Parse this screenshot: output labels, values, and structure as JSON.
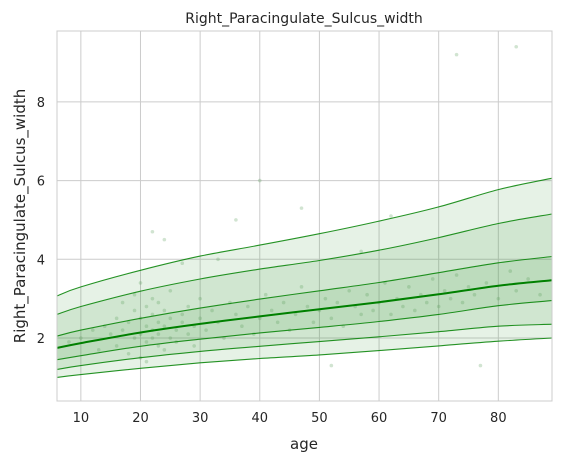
{
  "chart_data": {
    "type": "line",
    "title": "Right_Paracingulate_Sulcus_width",
    "xlabel": "age",
    "ylabel": "Right_Paracingulate_Sulcus_width",
    "xlim": [
      6,
      89
    ],
    "ylim": [
      0.4,
      9.8
    ],
    "xticks": [
      10,
      20,
      30,
      40,
      50,
      60,
      70,
      80
    ],
    "yticks": [
      2,
      4,
      6,
      8
    ],
    "grid": true,
    "line_color": "#008000",
    "band_color": "#3a9e3a",
    "x": [
      6,
      10,
      20,
      30,
      40,
      50,
      60,
      70,
      80,
      89
    ],
    "series": [
      {
        "values": [
          1.0,
          1.07,
          1.23,
          1.37,
          1.48,
          1.57,
          1.68,
          1.8,
          1.92,
          2.0
        ]
      },
      {
        "values": [
          1.2,
          1.3,
          1.5,
          1.66,
          1.79,
          1.91,
          2.03,
          2.16,
          2.3,
          2.35
        ]
      },
      {
        "values": [
          1.45,
          1.55,
          1.79,
          1.97,
          2.13,
          2.27,
          2.42,
          2.6,
          2.82,
          2.95
        ]
      },
      {
        "values": [
          1.75,
          1.87,
          2.14,
          2.36,
          2.55,
          2.73,
          2.91,
          3.11,
          3.33,
          3.47
        ]
      },
      {
        "values": [
          2.05,
          2.2,
          2.5,
          2.76,
          2.99,
          3.2,
          3.41,
          3.66,
          3.91,
          4.07
        ]
      },
      {
        "values": [
          2.6,
          2.8,
          3.19,
          3.5,
          3.75,
          3.97,
          4.23,
          4.55,
          4.91,
          5.15
        ]
      },
      {
        "values": [
          3.07,
          3.3,
          3.72,
          4.08,
          4.36,
          4.65,
          4.97,
          5.33,
          5.77,
          6.06
        ]
      }
    ],
    "scatter": {
      "x": [
        8,
        10,
        12,
        13,
        14,
        15,
        16,
        16,
        17,
        17,
        18,
        18,
        19,
        19,
        19,
        20,
        20,
        20,
        20,
        21,
        21,
        21,
        21,
        22,
        22,
        22,
        22,
        23,
        23,
        23,
        23,
        24,
        24,
        24,
        25,
        25,
        25,
        26,
        26,
        27,
        27,
        28,
        28,
        29,
        29,
        30,
        30,
        31,
        32,
        33,
        34,
        35,
        36,
        37,
        38,
        39,
        40,
        41,
        42,
        43,
        44,
        45,
        46,
        47,
        48,
        49,
        50,
        51,
        52,
        53,
        54,
        55,
        56,
        57,
        58,
        59,
        60,
        61,
        62,
        63,
        64,
        65,
        66,
        67,
        68,
        69,
        70,
        71,
        72,
        73,
        74,
        75,
        76,
        77,
        78,
        80,
        82,
        83,
        85,
        87,
        22,
        24,
        27,
        33,
        36,
        40,
        47,
        52,
        57,
        62
      ],
      "y": [
        1.9,
        2.0,
        2.2,
        1.7,
        2.3,
        2.1,
        2.5,
        1.8,
        2.2,
        2.9,
        1.6,
        2.4,
        2.0,
        2.7,
        3.1,
        1.5,
        2.1,
        2.5,
        3.4,
        1.9,
        2.3,
        2.8,
        1.4,
        2.0,
        2.6,
        3.0,
        2.2,
        1.8,
        2.4,
        2.9,
        2.1,
        2.3,
        1.7,
        2.7,
        2.0,
        2.5,
        3.2,
        2.2,
        1.9,
        2.6,
        2.4,
        2.1,
        2.8,
        2.3,
        1.8,
        2.5,
        3.0,
        2.2,
        2.7,
        2.4,
        2.0,
        2.9,
        2.6,
        2.3,
        2.8,
        2.1,
        2.5,
        3.1,
        2.7,
        2.4,
        2.9,
        2.2,
        2.6,
        3.3,
        2.8,
        2.4,
        2.7,
        3.0,
        2.5,
        2.9,
        2.3,
        3.2,
        2.8,
        2.6,
        3.1,
        2.7,
        2.9,
        3.4,
        2.6,
        3.0,
        2.8,
        3.3,
        2.7,
        3.1,
        2.9,
        3.5,
        2.8,
        3.2,
        3.0,
        3.6,
        2.9,
        3.3,
        3.1,
        1.3,
        3.4,
        3.0,
        3.7,
        3.2,
        3.5,
        3.1,
        4.7,
        4.5,
        3.9,
        4.0,
        5.0,
        6.0,
        5.3,
        1.3,
        4.2,
        5.1
      ],
      "outliers_x": [
        73,
        83
      ],
      "outliers_y": [
        9.2,
        9.4
      ]
    }
  }
}
